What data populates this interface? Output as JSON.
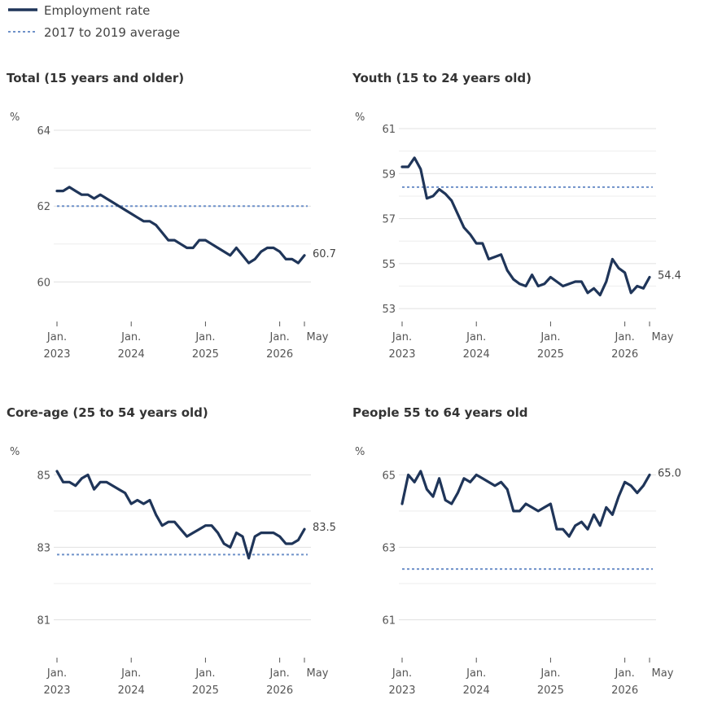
{
  "legend": {
    "employment_label": "Employment rate",
    "average_label": "2017 to 2019 average"
  },
  "colors": {
    "series": "#1f3559",
    "average": "#6f91c9",
    "grid": "#e1e1e1",
    "axis": "#555555"
  },
  "x_ticks": [
    {
      "line1": "Jan.",
      "line2": "2023",
      "x": 2023.0
    },
    {
      "line1": "Jan.",
      "line2": "2024",
      "x": 2024.0
    },
    {
      "line1": "Jan.",
      "line2": "2025",
      "x": 2025.0
    },
    {
      "line1": "Jan.",
      "line2": "2026",
      "x": 2026.0
    },
    {
      "line1": "May",
      "line2": "",
      "x": 2026.333
    }
  ],
  "chart_data": [
    {
      "type": "line",
      "title": "Total (15 years and older)",
      "ylabel": "%",
      "ylim": [
        59,
        64
      ],
      "yticks": [
        60,
        62,
        64
      ],
      "average": 62.0,
      "end_label": "60.7",
      "grid": true,
      "series": [
        {
          "name": "Employment rate",
          "values": [
            62.4,
            62.4,
            62.5,
            62.4,
            62.3,
            62.3,
            62.2,
            62.3,
            62.2,
            62.1,
            62.0,
            61.9,
            61.8,
            61.7,
            61.6,
            61.6,
            61.5,
            61.3,
            61.1,
            61.1,
            61.0,
            60.9,
            60.9,
            61.1,
            61.1,
            61.0,
            60.9,
            60.8,
            60.7,
            60.9,
            60.7,
            60.5,
            60.6,
            60.8,
            60.9,
            60.9,
            60.8,
            60.6,
            60.6,
            60.5,
            60.7
          ]
        }
      ]
    },
    {
      "type": "line",
      "title": "Youth (15 to 24 years old)",
      "ylabel": "%",
      "ylim": [
        52.5,
        61
      ],
      "yticks": [
        53,
        55,
        57,
        59,
        61
      ],
      "average": 58.4,
      "end_label": "54.4",
      "grid": true,
      "series": [
        {
          "name": "Employment rate",
          "values": [
            59.3,
            59.3,
            59.7,
            59.2,
            57.9,
            58.0,
            58.3,
            58.1,
            57.8,
            57.2,
            56.6,
            56.3,
            55.9,
            55.9,
            55.2,
            55.3,
            55.4,
            54.7,
            54.3,
            54.1,
            54.0,
            54.5,
            54.0,
            54.1,
            54.4,
            54.2,
            54.0,
            54.1,
            54.2,
            54.2,
            53.7,
            53.9,
            53.6,
            54.2,
            55.2,
            54.8,
            54.6,
            53.7,
            54.0,
            53.9,
            54.4
          ]
        }
      ]
    },
    {
      "type": "line",
      "title": "Core-age (25 to 54 years old)",
      "ylabel": "%",
      "ylim": [
        80,
        85.3
      ],
      "yticks": [
        81,
        83,
        85
      ],
      "average": 82.8,
      "end_label": "83.5",
      "grid": true,
      "series": [
        {
          "name": "Employment rate",
          "values": [
            85.1,
            84.8,
            84.8,
            84.7,
            84.9,
            85.0,
            84.6,
            84.8,
            84.8,
            84.7,
            84.6,
            84.5,
            84.2,
            84.3,
            84.2,
            84.3,
            83.9,
            83.6,
            83.7,
            83.7,
            83.5,
            83.3,
            83.4,
            83.5,
            83.6,
            83.6,
            83.4,
            83.1,
            83.0,
            83.4,
            83.3,
            82.7,
            83.3,
            83.4,
            83.4,
            83.4,
            83.3,
            83.1,
            83.1,
            83.2,
            83.5
          ]
        }
      ]
    },
    {
      "type": "line",
      "title": "People 55 to 64 years old",
      "ylabel": "%",
      "ylim": [
        60,
        65.3
      ],
      "yticks": [
        61,
        63,
        65
      ],
      "average": 62.4,
      "end_label": "65.0",
      "grid": true,
      "series": [
        {
          "name": "Employment rate",
          "values": [
            64.2,
            65.0,
            64.8,
            65.1,
            64.6,
            64.4,
            64.9,
            64.3,
            64.2,
            64.5,
            64.9,
            64.8,
            65.0,
            64.9,
            64.8,
            64.7,
            64.8,
            64.6,
            64.0,
            64.0,
            64.2,
            64.1,
            64.0,
            64.1,
            64.2,
            63.5,
            63.5,
            63.3,
            63.6,
            63.7,
            63.5,
            63.9,
            63.6,
            64.1,
            63.9,
            64.4,
            64.8,
            64.7,
            64.5,
            64.7,
            65.0
          ]
        }
      ]
    }
  ]
}
